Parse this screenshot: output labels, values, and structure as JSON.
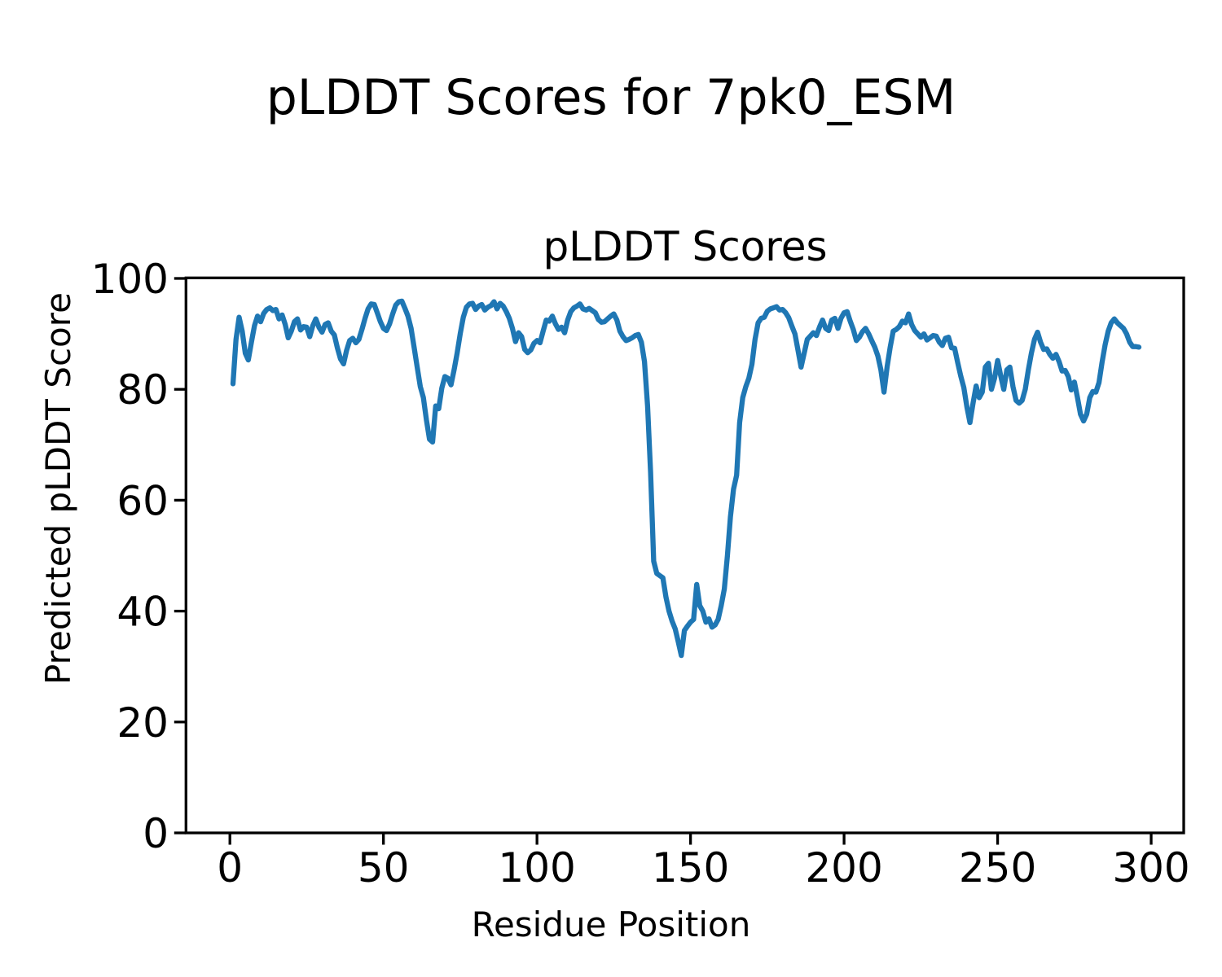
{
  "chart_data": {
    "type": "line",
    "suptitle": "pLDDT Scores for 7pk0_ESM",
    "title": "pLDDT Scores",
    "xlabel": "Residue Position",
    "ylabel": "Predicted pLDDT Score",
    "xlim": [
      -14.3,
      310.6
    ],
    "ylim": [
      0,
      100.1
    ],
    "xticks": [
      0,
      50,
      100,
      150,
      200,
      250,
      300
    ],
    "yticks": [
      0,
      20,
      40,
      60,
      80,
      100
    ],
    "grid": false,
    "legend": null,
    "background_color": "#ffffff",
    "axes_color": "#000000",
    "series": [
      {
        "name": "pLDDT",
        "color": "#1f77b4",
        "x_start": 1,
        "x_step": 1,
        "y": [
          81,
          89,
          93,
          90.5,
          86.5,
          85.3,
          88.5,
          91.5,
          93.2,
          92.2,
          93.7,
          94.4,
          94.7,
          94.2,
          94.4,
          92.7,
          93.4,
          91.7,
          89.3,
          90.5,
          92.2,
          92.7,
          90.7,
          91.3,
          91.2,
          89.5,
          91.5,
          92.7,
          91.2,
          90.3,
          91.7,
          92,
          90.5,
          89.8,
          87.5,
          85.5,
          84.6,
          87,
          88.8,
          89.2,
          88.4,
          89,
          90.8,
          92.8,
          94.5,
          95.4,
          95.3,
          93.8,
          92.2,
          91,
          90.6,
          91.8,
          93.6,
          95.2,
          95.8,
          95.9,
          94.6,
          93.2,
          91,
          87.5,
          84,
          80.5,
          78.5,
          74.5,
          71,
          70.5,
          77,
          76.5,
          80.2,
          82.3,
          82,
          80.8,
          83.5,
          86.5,
          90,
          93,
          94.8,
          95.4,
          95.5,
          94.4,
          95,
          95.3,
          94.3,
          94.8,
          95.1,
          95.8,
          94.5,
          95.5,
          95,
          94,
          92.8,
          91,
          88.6,
          90.2,
          89.5,
          87.2,
          86.6,
          87.1,
          88.3,
          88.8,
          88.4,
          90.5,
          92.5,
          92.3,
          93.2,
          91.8,
          90.8,
          91.2,
          90.2,
          92.5,
          94,
          94.7,
          95,
          95.4,
          94.5,
          94.3,
          94.6,
          94.2,
          93.8,
          92.6,
          92.1,
          92.2,
          92.7,
          93.2,
          93.6,
          92.5,
          90.5,
          89.5,
          88.8,
          89,
          89.3,
          89.7,
          89.9,
          88.5,
          85,
          77,
          65,
          49,
          46.8,
          46.4,
          46,
          42.5,
          40,
          38.2,
          36.8,
          34.5,
          32,
          36.5,
          37.3,
          38,
          38.5,
          44.8,
          41,
          40,
          38,
          38.6,
          37.1,
          37.5,
          38.5,
          41,
          44,
          50,
          57,
          62,
          64.5,
          74,
          78.5,
          80.5,
          82,
          84.5,
          89,
          92,
          92.8,
          93,
          94.1,
          94.5,
          94.7,
          94.9,
          94.3,
          94.4,
          93.8,
          92.9,
          91.4,
          90,
          87,
          84,
          86.5,
          89,
          89.6,
          90.2,
          89.7,
          91.2,
          92.5,
          91,
          90.6,
          92.5,
          92.8,
          91,
          92.8,
          93.8,
          94,
          92.3,
          90.8,
          88.8,
          89.4,
          90.4,
          91,
          90,
          88.8,
          87.6,
          86,
          83.5,
          79.5,
          84,
          87.5,
          90.5,
          90.8,
          91.3,
          92.3,
          92,
          93.6,
          91.7,
          90.6,
          90,
          89.4,
          90,
          88.9,
          89.3,
          89.7,
          89.6,
          88.5,
          87.9,
          89.2,
          89.4,
          87.5,
          87.4,
          84.8,
          82.4,
          80.3,
          76.8,
          74,
          77.5,
          80.6,
          78.5,
          79.5,
          84,
          84.7,
          80,
          82,
          85.2,
          82.5,
          80,
          83.5,
          84,
          80.5,
          78,
          77.5,
          78,
          80,
          83.5,
          86.5,
          89,
          90.3,
          88.5,
          87.2,
          87.3,
          86.3,
          85.6,
          86.3,
          85,
          83.3,
          83.4,
          82.3,
          79.9,
          81.3,
          78.5,
          75.5,
          74.3,
          75.5,
          78.5,
          79.6,
          79.5,
          81.2,
          84.8,
          88,
          90.5,
          92,
          92.7,
          92,
          91.5,
          91,
          90,
          88.5,
          87.7,
          87.7,
          87.6
        ]
      }
    ]
  }
}
